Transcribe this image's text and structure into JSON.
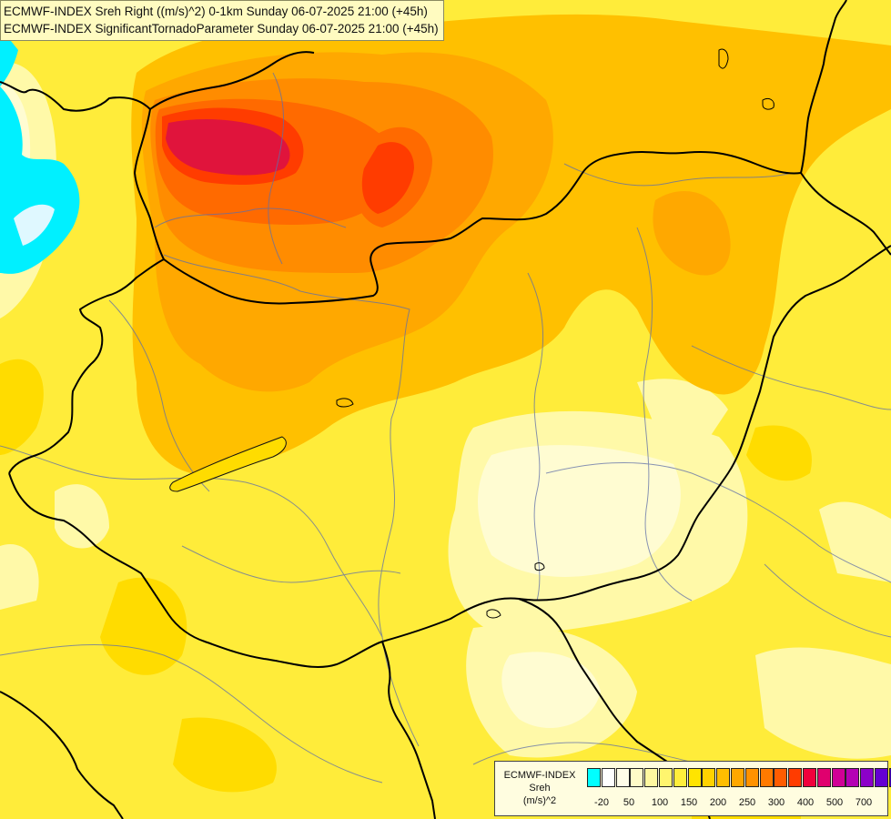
{
  "title": {
    "line1": "ECMWF-INDEX Sreh Right ((m/s)^2) 0-1km Sunday 06-07-2025 21:00 (+45h)",
    "line2": "ECMWF-INDEX SignificantTornadoParameter Sunday 06-07-2025 21:00 (+45h)"
  },
  "legend": {
    "model": "ECMWF-INDEX",
    "parameter": "Sreh",
    "unit": "(m/s)^2",
    "colors": [
      "#00ffff",
      "#ffffff",
      "#fffde8",
      "#fffbc8",
      "#fff8a0",
      "#fff56e",
      "#ffee3c",
      "#ffe400",
      "#ffd200",
      "#ffbe00",
      "#ffa800",
      "#ff9200",
      "#ff7a00",
      "#ff5c00",
      "#ff3c00",
      "#f0003c",
      "#e0006e",
      "#d00096",
      "#b400b4",
      "#8c00c8",
      "#6400d2",
      "#3c00b4",
      "#000096"
    ],
    "tick_labels": [
      "-20",
      "50",
      "100",
      "150",
      "200",
      "250",
      "300",
      "400",
      "500",
      "700"
    ]
  }
}
